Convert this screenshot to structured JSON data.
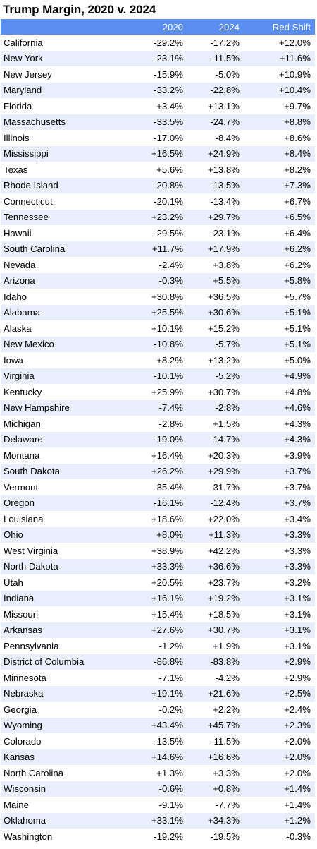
{
  "title": "Trump Margin, 2020 v. 2024",
  "chart_data": {
    "type": "table",
    "columns": [
      "",
      "2020",
      "2024",
      "Red Shift"
    ],
    "rows": [
      [
        "California",
        "-29.2%",
        "-17.2%",
        "+12.0%"
      ],
      [
        "New York",
        "-23.1%",
        "-11.5%",
        "+11.6%"
      ],
      [
        "New Jersey",
        "-15.9%",
        "-5.0%",
        "+10.9%"
      ],
      [
        "Maryland",
        "-33.2%",
        "-22.8%",
        "+10.4%"
      ],
      [
        "Florida",
        "+3.4%",
        "+13.1%",
        "+9.7%"
      ],
      [
        "Massachusetts",
        "-33.5%",
        "-24.7%",
        "+8.8%"
      ],
      [
        "Illinois",
        "-17.0%",
        "-8.4%",
        "+8.6%"
      ],
      [
        "Mississippi",
        "+16.5%",
        "+24.9%",
        "+8.4%"
      ],
      [
        "Texas",
        "+5.6%",
        "+13.8%",
        "+8.2%"
      ],
      [
        "Rhode Island",
        "-20.8%",
        "-13.5%",
        "+7.3%"
      ],
      [
        "Connecticut",
        "-20.1%",
        "-13.4%",
        "+6.7%"
      ],
      [
        "Tennessee",
        "+23.2%",
        "+29.7%",
        "+6.5%"
      ],
      [
        "Hawaii",
        "-29.5%",
        "-23.1%",
        "+6.4%"
      ],
      [
        "South Carolina",
        "+11.7%",
        "+17.9%",
        "+6.2%"
      ],
      [
        "Nevada",
        "-2.4%",
        "+3.8%",
        "+6.2%"
      ],
      [
        "Arizona",
        "-0.3%",
        "+5.5%",
        "+5.8%"
      ],
      [
        "Idaho",
        "+30.8%",
        "+36.5%",
        "+5.7%"
      ],
      [
        "Alabama",
        "+25.5%",
        "+30.6%",
        "+5.1%"
      ],
      [
        "Alaska",
        "+10.1%",
        "+15.2%",
        "+5.1%"
      ],
      [
        "New Mexico",
        "-10.8%",
        "-5.7%",
        "+5.1%"
      ],
      [
        "Iowa",
        "+8.2%",
        "+13.2%",
        "+5.0%"
      ],
      [
        "Virginia",
        "-10.1%",
        "-5.2%",
        "+4.9%"
      ],
      [
        "Kentucky",
        "+25.9%",
        "+30.7%",
        "+4.8%"
      ],
      [
        "New Hampshire",
        "-7.4%",
        "-2.8%",
        "+4.6%"
      ],
      [
        "Michigan",
        "-2.8%",
        "+1.5%",
        "+4.3%"
      ],
      [
        "Delaware",
        "-19.0%",
        "-14.7%",
        "+4.3%"
      ],
      [
        "Montana",
        "+16.4%",
        "+20.3%",
        "+3.9%"
      ],
      [
        "South Dakota",
        "+26.2%",
        "+29.9%",
        "+3.7%"
      ],
      [
        "Vermont",
        "-35.4%",
        "-31.7%",
        "+3.7%"
      ],
      [
        "Oregon",
        "-16.1%",
        "-12.4%",
        "+3.7%"
      ],
      [
        "Louisiana",
        "+18.6%",
        "+22.0%",
        "+3.4%"
      ],
      [
        "Ohio",
        "+8.0%",
        "+11.3%",
        "+3.3%"
      ],
      [
        "West Virginia",
        "+38.9%",
        "+42.2%",
        "+3.3%"
      ],
      [
        "North Dakota",
        "+33.3%",
        "+36.6%",
        "+3.3%"
      ],
      [
        "Utah",
        "+20.5%",
        "+23.7%",
        "+3.2%"
      ],
      [
        "Indiana",
        "+16.1%",
        "+19.2%",
        "+3.1%"
      ],
      [
        "Missouri",
        "+15.4%",
        "+18.5%",
        "+3.1%"
      ],
      [
        "Arkansas",
        "+27.6%",
        "+30.7%",
        "+3.1%"
      ],
      [
        "Pennsylvania",
        "-1.2%",
        "+1.9%",
        "+3.1%"
      ],
      [
        "District of Columbia",
        "-86.8%",
        "-83.8%",
        "+2.9%"
      ],
      [
        "Minnesota",
        "-7.1%",
        "-4.2%",
        "+2.9%"
      ],
      [
        "Nebraska",
        "+19.1%",
        "+21.6%",
        "+2.5%"
      ],
      [
        "Georgia",
        "-0.2%",
        "+2.2%",
        "+2.4%"
      ],
      [
        "Wyoming",
        "+43.4%",
        "+45.7%",
        "+2.3%"
      ],
      [
        "Colorado",
        "-13.5%",
        "-11.5%",
        "+2.0%"
      ],
      [
        "Kansas",
        "+14.6%",
        "+16.6%",
        "+2.0%"
      ],
      [
        "North Carolina",
        "+1.3%",
        "+3.3%",
        "+2.0%"
      ],
      [
        "Wisconsin",
        "-0.6%",
        "+0.8%",
        "+1.4%"
      ],
      [
        "Maine",
        "-9.1%",
        "-7.7%",
        "+1.4%"
      ],
      [
        "Oklahoma",
        "+33.1%",
        "+34.3%",
        "+1.2%"
      ],
      [
        "Washington",
        "-19.2%",
        "-19.5%",
        "-0.3%"
      ]
    ]
  },
  "colors": {
    "header_bg": "#5b8ef1",
    "header_text": "#ffffff",
    "band_row": "#e8eefb"
  }
}
